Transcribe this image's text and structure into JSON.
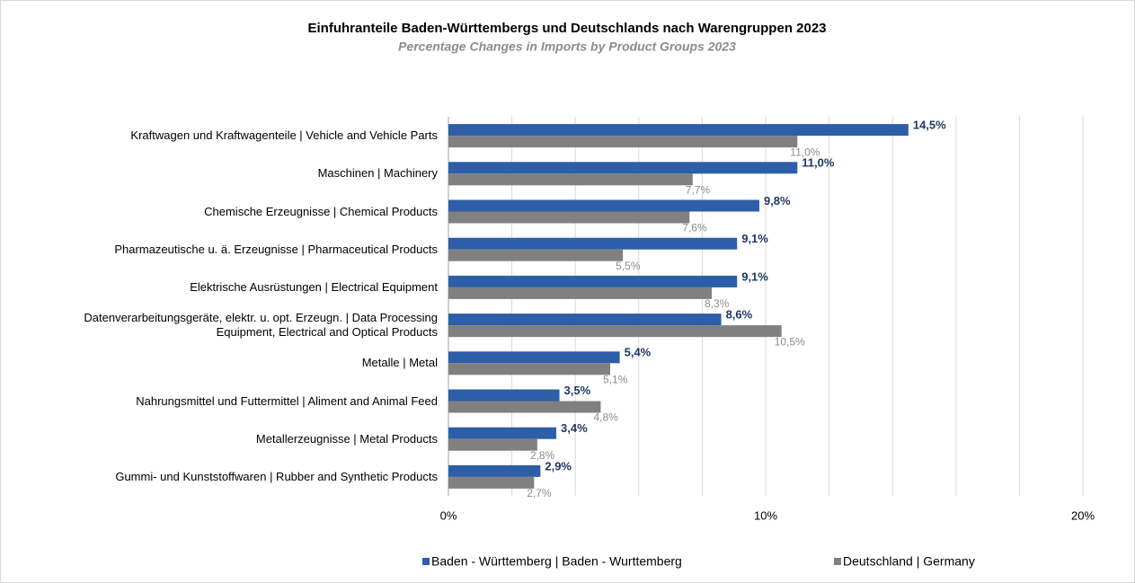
{
  "chart_data": {
    "type": "bar",
    "orientation": "horizontal",
    "title": "Einfuhranteile Baden-Württembergs und Deutschlands nach Warengruppen 2023",
    "subtitle": "Percentage Changes in Imports by Product Groups 2023",
    "categories": [
      "Kraftwagen und Kraftwagenteile | Vehicle and Vehicle Parts",
      "Maschinen | Machinery",
      "Chemische Erzeugnisse | Chemical Products",
      "Pharmazeutische u. ä. Erzeugnisse | Pharmaceutical Products",
      "Elektrische Ausrüstungen | Electrical Equipment",
      "Datenverarbeitungsgeräte, elektr. u. opt. Erzeugn. | Data Processing\nEquipment, Electrical and Optical Products",
      "Metalle | Metal",
      "Nahrungsmittel und Futtermittel | Aliment and Animal Feed",
      "Metallerzeugnisse | Metal Products",
      "Gummi- und Kunststoffwaren | Rubber and Synthetic Products"
    ],
    "series": [
      {
        "name": "Baden - Württemberg | Baden - Wurttemberg",
        "color": "#2e5ea8",
        "values": [
          14.5,
          11.0,
          9.8,
          9.1,
          9.1,
          8.6,
          5.4,
          3.5,
          3.4,
          2.9
        ],
        "value_labels": [
          "14,5%",
          "11,0%",
          "9,8%",
          "9,1%",
          "9,1%",
          "8,6%",
          "5,4%",
          "3,5%",
          "3,4%",
          "2,9%"
        ]
      },
      {
        "name": "Deutschland | Germany",
        "color": "#808080",
        "values": [
          11.0,
          7.7,
          7.6,
          5.5,
          8.3,
          10.5,
          5.1,
          4.8,
          2.8,
          2.7
        ],
        "value_labels": [
          "11,0%",
          "7,7%",
          "7,6%",
          "5,5%",
          "8,3%",
          "10,5%",
          "5,1%",
          "4,8%",
          "2,8%",
          "2,7%"
        ]
      }
    ],
    "xlim": [
      0,
      20
    ],
    "xticks": [
      {
        "value": 0,
        "label": "0%"
      },
      {
        "value": 10,
        "label": "10%"
      },
      {
        "value": 20,
        "label": "20%"
      }
    ],
    "minor_xticks": [
      2,
      4,
      6,
      8,
      12,
      14,
      16,
      18
    ],
    "grid": true,
    "legend": "bottom"
  }
}
